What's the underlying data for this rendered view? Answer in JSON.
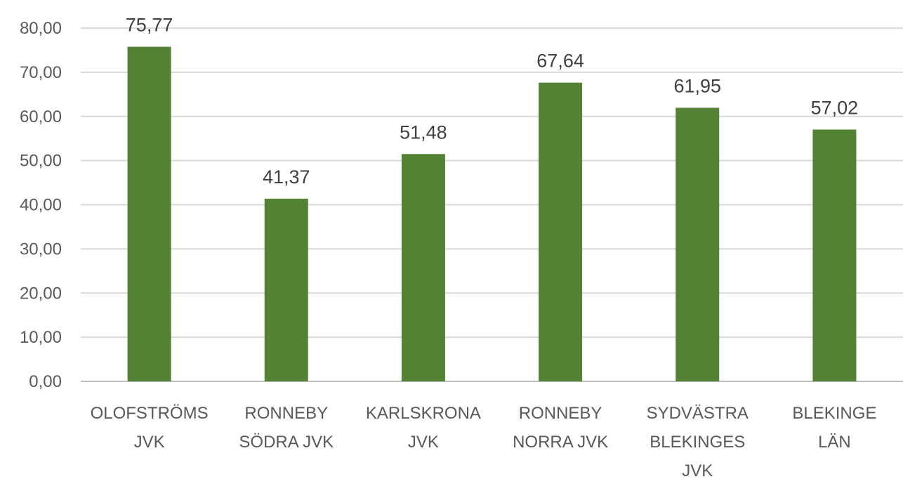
{
  "chart_data": {
    "type": "bar",
    "title": "",
    "xlabel": "",
    "ylabel": "",
    "ylim": [
      0,
      80
    ],
    "y_ticks": [
      "0,00",
      "10,00",
      "20,00",
      "30,00",
      "40,00",
      "50,00",
      "60,00",
      "70,00",
      "80,00"
    ],
    "y_tick_values": [
      0,
      10,
      20,
      30,
      40,
      50,
      60,
      70,
      80
    ],
    "grid": true,
    "legend": "none",
    "bar_color": "#548235",
    "categories": [
      [
        "OLOFSTRÖMS",
        "JVK"
      ],
      [
        "RONNEBY",
        "SÖDRA JVK"
      ],
      [
        "KARLSKRONA",
        "JVK"
      ],
      [
        "RONNEBY",
        "NORRA JVK"
      ],
      [
        "SYDVÄSTRA",
        "BLEKINGES",
        "JVK"
      ],
      [
        "BLEKINGE",
        "LÄN"
      ]
    ],
    "values": [
      75.77,
      41.37,
      51.48,
      67.64,
      61.95,
      57.02
    ],
    "data_labels": [
      "75,77",
      "41,37",
      "51,48",
      "67,64",
      "61,95",
      "57,02"
    ]
  }
}
